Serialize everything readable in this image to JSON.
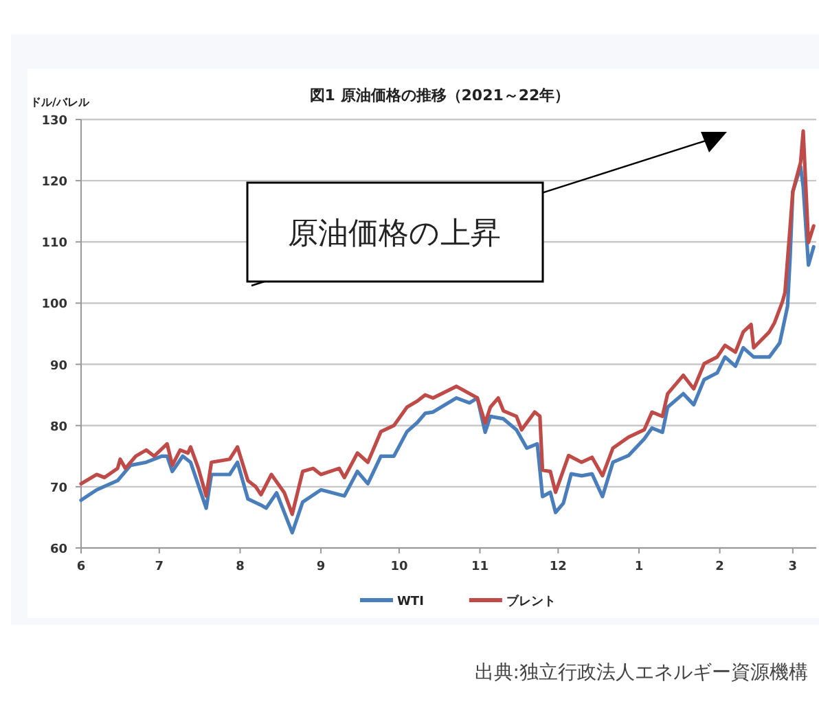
{
  "chart_data": {
    "type": "line",
    "title": "図1 原油価格の推移（2021～22年）",
    "ylabel": "ドル/バレル",
    "annotations": [
      "原油価格の上昇",
      "出典:独立行政法人エネルギー資源機構"
    ],
    "xlim": [
      "2021-06-01",
      "2022-03-10"
    ],
    "xticks": [
      {
        "value": "2021-06-01",
        "label": "6"
      },
      {
        "value": "2021-07-01",
        "label": "7"
      },
      {
        "value": "2021-08-01",
        "label": "8"
      },
      {
        "value": "2021-09-01",
        "label": "9"
      },
      {
        "value": "2021-10-01",
        "label": "10"
      },
      {
        "value": "2021-11-01",
        "label": "11"
      },
      {
        "value": "2021-12-01",
        "label": "12"
      },
      {
        "value": "2022-01-01",
        "label": "1"
      },
      {
        "value": "2022-02-01",
        "label": "2"
      },
      {
        "value": "2022-03-01",
        "label": "3"
      }
    ],
    "ylim": [
      60,
      130
    ],
    "yticks": [
      60,
      70,
      80,
      90,
      100,
      110,
      120,
      130
    ],
    "grid": "y",
    "legend": "bottom",
    "series": [
      {
        "name": "WTI",
        "color": "#4a7ebb",
        "x": [
          "2021-06-01",
          "2021-06-07",
          "2021-06-15",
          "2021-06-20",
          "2021-06-26",
          "2021-07-02",
          "2021-07-04",
          "2021-07-06",
          "2021-07-10",
          "2021-07-13",
          "2021-07-19",
          "2021-07-21",
          "2021-07-28",
          "2021-07-31",
          "2021-08-04",
          "2021-08-09",
          "2021-08-11",
          "2021-08-15",
          "2021-08-21",
          "2021-08-25",
          "2021-09-01",
          "2021-09-10",
          "2021-09-15",
          "2021-09-19",
          "2021-09-24",
          "2021-09-29",
          "2021-10-04",
          "2021-10-08",
          "2021-10-11",
          "2021-10-14",
          "2021-10-23",
          "2021-10-28",
          "2021-10-31",
          "2021-11-03",
          "2021-11-05",
          "2021-11-10",
          "2021-11-15",
          "2021-11-19",
          "2021-11-23",
          "2021-11-25",
          "2021-11-28",
          "2021-11-30",
          "2021-12-03",
          "2021-12-06",
          "2021-12-10",
          "2021-12-14",
          "2021-12-18",
          "2021-12-22",
          "2021-12-28",
          "2022-01-03",
          "2022-01-06",
          "2022-01-10",
          "2022-01-12",
          "2022-01-18",
          "2022-01-22",
          "2022-01-26",
          "2022-01-31",
          "2022-02-03",
          "2022-02-07",
          "2022-02-10",
          "2022-02-14",
          "2022-02-17",
          "2022-02-20",
          "2022-02-24",
          "2022-02-27",
          "2022-02-28",
          "2022-03-01",
          "2022-03-04",
          "2022-03-05",
          "2022-03-07",
          "2022-03-09"
        ],
        "values": [
          67.8,
          69.5,
          71,
          73.5,
          74,
          75,
          75,
          72.5,
          75,
          74,
          66.5,
          72,
          72,
          74,
          68,
          67,
          66.5,
          69,
          62.5,
          67.5,
          69.5,
          68.5,
          72.5,
          70.5,
          75,
          75,
          79,
          80.5,
          82,
          82.2,
          84.5,
          83.7,
          84.5,
          78.9,
          81.5,
          81.1,
          79.3,
          76.3,
          77,
          68.4,
          69.1,
          65.8,
          67.3,
          72.1,
          71.8,
          72.1,
          68.4,
          74,
          75.1,
          77.8,
          79.6,
          78.9,
          83,
          85.2,
          83.4,
          87.5,
          88.6,
          91.2,
          89.7,
          92.7,
          91.2,
          91.2,
          91.2,
          93.5,
          99.5,
          107.7,
          118.2,
          122.3,
          119,
          106.2,
          109.2
        ]
      },
      {
        "name": "ブレント",
        "color": "#be4b48",
        "x": [
          "2021-06-01",
          "2021-06-07",
          "2021-06-10",
          "2021-06-15",
          "2021-06-16",
          "2021-06-18",
          "2021-06-22",
          "2021-06-26",
          "2021-06-29",
          "2021-07-04",
          "2021-07-06",
          "2021-07-09",
          "2021-07-12",
          "2021-07-13",
          "2021-07-16",
          "2021-07-19",
          "2021-07-21",
          "2021-07-28",
          "2021-07-31",
          "2021-08-04",
          "2021-08-07",
          "2021-08-09",
          "2021-08-13",
          "2021-08-18",
          "2021-08-21",
          "2021-08-25",
          "2021-08-29",
          "2021-09-01",
          "2021-09-08",
          "2021-09-10",
          "2021-09-15",
          "2021-09-19",
          "2021-09-24",
          "2021-09-29",
          "2021-10-04",
          "2021-10-08",
          "2021-10-11",
          "2021-10-14",
          "2021-10-23",
          "2021-10-31",
          "2021-11-03",
          "2021-11-05",
          "2021-11-08",
          "2021-11-10",
          "2021-11-15",
          "2021-11-17",
          "2021-11-22",
          "2021-11-24",
          "2021-11-25",
          "2021-11-28",
          "2021-11-30",
          "2021-12-05",
          "2021-12-10",
          "2021-12-14",
          "2021-12-18",
          "2021-12-22",
          "2021-12-28",
          "2022-01-03",
          "2022-01-06",
          "2022-01-10",
          "2022-01-12",
          "2022-01-18",
          "2022-01-22",
          "2022-01-26",
          "2022-01-31",
          "2022-02-03",
          "2022-02-07",
          "2022-02-10",
          "2022-02-13",
          "2022-02-14",
          "2022-02-20",
          "2022-02-22",
          "2022-02-25",
          "2022-02-26",
          "2022-02-28",
          "2022-03-01",
          "2022-03-04",
          "2022-03-05",
          "2022-03-07",
          "2022-03-09"
        ],
        "values": [
          70.5,
          72,
          71.5,
          73,
          74.5,
          73,
          75,
          76,
          75,
          77,
          73.5,
          76,
          75.5,
          76.5,
          73,
          68.5,
          74,
          74.5,
          76.5,
          71,
          70,
          68.7,
          72,
          69,
          65.5,
          72.5,
          73,
          72,
          73,
          71.5,
          75.5,
          74,
          79,
          80,
          83,
          84,
          85,
          84.5,
          86.4,
          84.5,
          80.4,
          83,
          84.5,
          82.4,
          81.5,
          79.3,
          82.2,
          81.5,
          72.7,
          72.5,
          69.1,
          75.1,
          74,
          74.8,
          71.8,
          76.3,
          78.1,
          79.3,
          82.2,
          81.5,
          85.2,
          88.2,
          86,
          90.1,
          91.2,
          93.1,
          92,
          95.3,
          96.5,
          92.7,
          95.3,
          96.8,
          100.2,
          101.7,
          112.6,
          118.2,
          123,
          128.1,
          109.9,
          112.6
        ]
      }
    ]
  }
}
